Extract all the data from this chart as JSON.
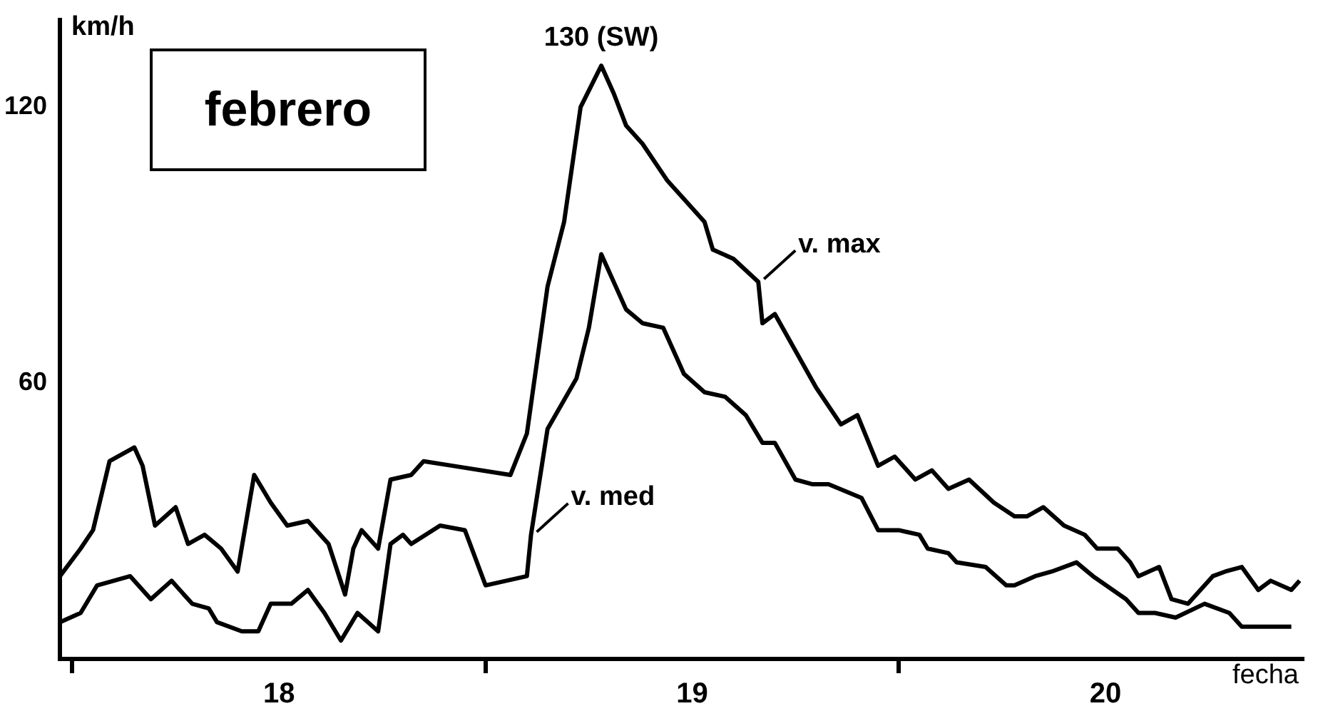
{
  "chart_data": {
    "type": "line",
    "title": "febrero",
    "ylabel": "km/h",
    "xlabel": "fecha",
    "xlim": [
      17.97,
      20.98
    ],
    "ylim": [
      0,
      139
    ],
    "xticks": [
      {
        "value": 18,
        "label": null
      },
      {
        "value": 18.5,
        "label": "18"
      },
      {
        "value": 19,
        "label": null
      },
      {
        "value": 19.5,
        "label": "19"
      },
      {
        "value": 20,
        "label": null
      },
      {
        "value": 20.5,
        "label": "20"
      }
    ],
    "yticks": [
      60,
      120
    ],
    "annotations": [
      {
        "text": "130 (SW)",
        "x": 19.28,
        "y": 129
      }
    ],
    "series": [
      {
        "name": "v. max",
        "color": "#000000",
        "x": [
          17.97,
          18.02,
          18.05,
          18.09,
          18.15,
          18.17,
          18.2,
          18.25,
          18.28,
          18.32,
          18.36,
          18.4,
          18.44,
          18.48,
          18.52,
          18.57,
          18.62,
          18.66,
          18.68,
          18.7,
          18.74,
          18.77,
          18.82,
          18.85,
          18.92,
          19.06,
          19.1,
          19.15,
          19.19,
          19.23,
          19.28,
          19.31,
          19.34,
          19.38,
          19.44,
          19.48,
          19.53,
          19.55,
          19.6,
          19.66,
          19.67,
          19.7,
          19.8,
          19.86,
          19.9,
          19.95,
          19.99,
          20.04,
          20.08,
          20.12,
          20.17,
          20.23,
          20.28,
          20.31,
          20.35,
          20.4,
          20.45,
          20.48,
          20.53,
          20.56,
          20.58,
          20.63,
          20.66,
          20.7,
          20.76,
          20.79,
          20.83,
          20.87,
          20.9,
          20.95,
          20.97
        ],
        "values": [
          18,
          24,
          28,
          43,
          46,
          42,
          29,
          33,
          25,
          27,
          24,
          19,
          40,
          34,
          29,
          30,
          25,
          14,
          24,
          28,
          24,
          39,
          40,
          43,
          42,
          40,
          49,
          81,
          95,
          120,
          129,
          123,
          116,
          112,
          104,
          100,
          95,
          89,
          87,
          82,
          73,
          75,
          59,
          51,
          53,
          42,
          44,
          39,
          41,
          37,
          39,
          34,
          31,
          31,
          33,
          29,
          27,
          24,
          24,
          21,
          18,
          20,
          13,
          12,
          18,
          19,
          20,
          15,
          17,
          15,
          17
        ]
      },
      {
        "name": "v. med",
        "color": "#000000",
        "x": [
          17.97,
          18.02,
          18.06,
          18.1,
          18.14,
          18.19,
          18.24,
          18.29,
          18.33,
          18.35,
          18.41,
          18.45,
          18.48,
          18.53,
          18.57,
          18.61,
          18.65,
          18.69,
          18.74,
          18.77,
          18.8,
          18.82,
          18.89,
          18.95,
          19.0,
          19.1,
          19.11,
          19.15,
          19.22,
          19.25,
          19.28,
          19.34,
          19.38,
          19.43,
          19.48,
          19.53,
          19.58,
          19.63,
          19.67,
          19.7,
          19.75,
          19.79,
          19.83,
          19.91,
          19.95,
          20.0,
          20.05,
          20.07,
          20.12,
          20.14,
          20.21,
          20.26,
          20.28,
          20.33,
          20.37,
          20.43,
          20.47,
          20.55,
          20.58,
          20.62,
          20.67,
          20.74,
          20.8,
          20.83,
          20.88,
          20.95
        ],
        "values": [
          8,
          10,
          16,
          17,
          18,
          13,
          17,
          12,
          11,
          8,
          6,
          6,
          12,
          12,
          15,
          10,
          4,
          10,
          6,
          25,
          27,
          25,
          29,
          28,
          16,
          18,
          27,
          50,
          61,
          72,
          88,
          76,
          73,
          72,
          62,
          58,
          57,
          53,
          47,
          47,
          39,
          38,
          38,
          35,
          28,
          28,
          27,
          24,
          23,
          21,
          20,
          16,
          16,
          18,
          19,
          21,
          18,
          13,
          10,
          10,
          9,
          12,
          10,
          7,
          7,
          7
        ]
      }
    ]
  }
}
